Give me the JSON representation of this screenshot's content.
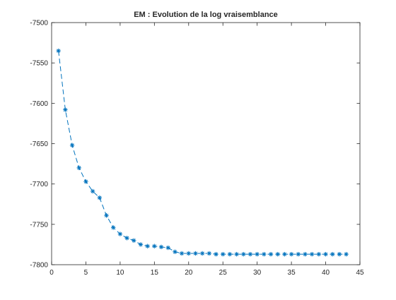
{
  "chart_data": {
    "type": "line",
    "title": "EM : Evolution de la log vraisemblance",
    "xlabel": "",
    "ylabel": "",
    "xlim": [
      0,
      45
    ],
    "ylim": [
      -7800,
      -7500
    ],
    "xticks": [
      0,
      5,
      10,
      15,
      20,
      25,
      30,
      35,
      40,
      45
    ],
    "yticks": [
      -7500,
      -7550,
      -7600,
      -7650,
      -7700,
      -7750,
      -7800
    ],
    "xtick_labels": [
      "0",
      "5",
      "10",
      "15",
      "20",
      "25",
      "30",
      "35",
      "40",
      "45"
    ],
    "ytick_labels": [
      "-7500",
      "-7550",
      "-7600",
      "-7650",
      "-7700",
      "-7750",
      "-7800"
    ],
    "grid": false,
    "marker": "asterisk",
    "line_style": "dashed",
    "color": "#0072BD",
    "x": [
      1,
      2,
      3,
      4,
      5,
      6,
      7,
      8,
      9,
      10,
      11,
      12,
      13,
      14,
      15,
      16,
      17,
      18,
      19,
      20,
      21,
      22,
      23,
      24,
      25,
      26,
      27,
      28,
      29,
      30,
      31,
      32,
      33,
      34,
      35,
      36,
      37,
      38,
      39,
      40,
      41,
      42,
      43
    ],
    "y": [
      -7535,
      -7608,
      -7652,
      -7680,
      -7697,
      -7709,
      -7717,
      -7739,
      -7754,
      -7762,
      -7767,
      -7770,
      -7775,
      -7777,
      -7777,
      -7778,
      -7779,
      -7784,
      -7786,
      -7786,
      -7786,
      -7786,
      -7786,
      -7787,
      -7787,
      -7787,
      -7787,
      -7787,
      -7787,
      -7787,
      -7787,
      -7787,
      -7787,
      -7787,
      -7787,
      -7787,
      -7787,
      -7787,
      -7787,
      -7787,
      -7787,
      -7787,
      -7787
    ]
  }
}
